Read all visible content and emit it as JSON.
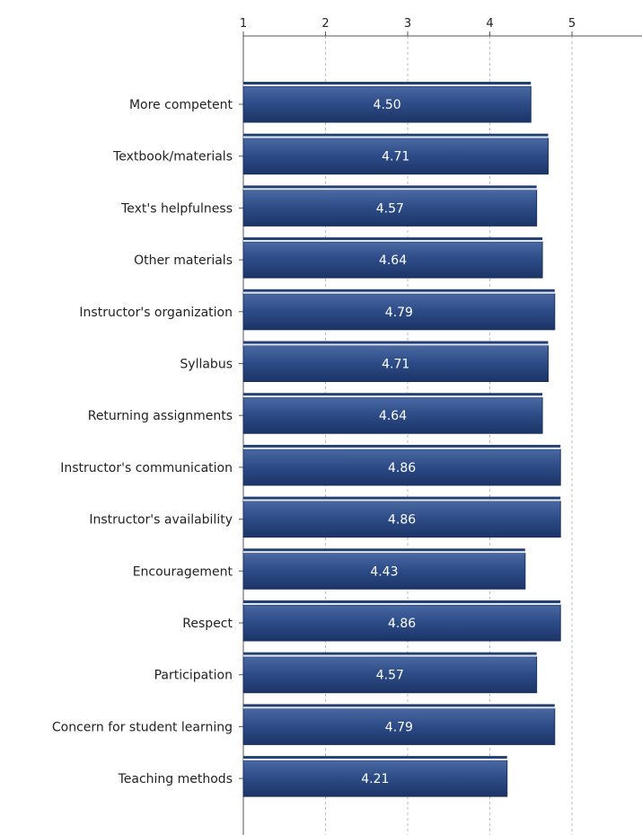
{
  "chart_data": {
    "type": "bar",
    "orientation": "horizontal",
    "categories": [
      "More competent",
      "Textbook/materials",
      "Text's helpfulness",
      "Other materials",
      "Instructor's organization",
      "Syllabus",
      "Returning assignments",
      "Instructor's communication",
      "Instructor's availability",
      "Encouragement",
      "Respect",
      "Participation",
      "Concern for student learning",
      "Teaching methods"
    ],
    "values": [
      4.5,
      4.71,
      4.57,
      4.64,
      4.79,
      4.71,
      4.64,
      4.86,
      4.86,
      4.43,
      4.86,
      4.57,
      4.79,
      4.21
    ],
    "value_labels": [
      "4.50",
      "4.71",
      "4.57",
      "4.64",
      "4.79",
      "4.71",
      "4.64",
      "4.86",
      "4.86",
      "4.43",
      "4.86",
      "4.57",
      "4.79",
      "4.21"
    ],
    "xticks": [
      "1",
      "2",
      "3",
      "4",
      "5"
    ],
    "xlim": [
      1,
      5.85
    ],
    "grid": "vertical dashed",
    "bar_color": "#2b4a85",
    "bar_highlight": "#4f6fa8",
    "axis_color": "#555555",
    "grid_color": "#bbbbbb",
    "title": "",
    "xlabel": "",
    "ylabel": ""
  }
}
